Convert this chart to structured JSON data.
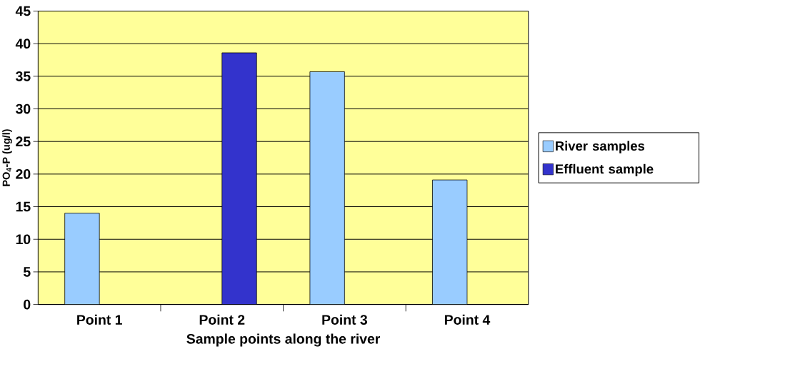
{
  "chart_data": {
    "type": "bar",
    "xlabel": "Sample points along the river",
    "ylabel": "PO$_{4}$-P (ug/l)",
    "categories": [
      "Point 1",
      "Point 2",
      "Point 3",
      "Point 4"
    ],
    "series": [
      {
        "name": "River samples",
        "color": "#99ccff",
        "values": [
          14,
          null,
          35.7,
          19.1
        ]
      },
      {
        "name": "Effluent sample",
        "color": "#3333cc",
        "values": [
          null,
          38.6,
          null,
          null
        ]
      }
    ],
    "ylim": [
      0,
      45
    ],
    "yticks": [
      0,
      5,
      10,
      15,
      20,
      25,
      30,
      35,
      40,
      45
    ],
    "grid": "y",
    "legend": "right"
  }
}
